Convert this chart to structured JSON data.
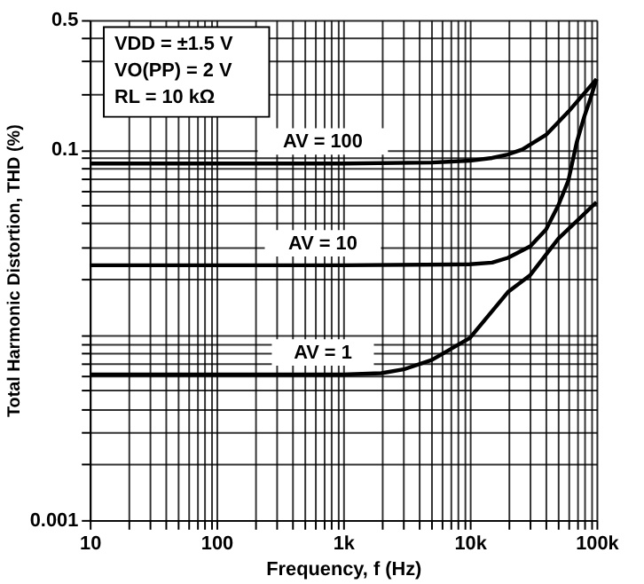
{
  "chart_data": {
    "type": "line",
    "xlabel": "Frequency, f (Hz)",
    "ylabel": "Total Harmonic Distortion, THD (%)",
    "log": "xy",
    "grid": true,
    "line_style": "solid",
    "marker": "none",
    "xlim": [
      10,
      100000
    ],
    "ylim": [
      0.001,
      0.5
    ],
    "xticks": [
      {
        "value": 10,
        "label": "10"
      },
      {
        "value": 20,
        "label": null
      },
      {
        "value": 30,
        "label": null
      },
      {
        "value": 40,
        "label": null
      },
      {
        "value": 50,
        "label": null
      },
      {
        "value": 60,
        "label": null
      },
      {
        "value": 70,
        "label": null
      },
      {
        "value": 80,
        "label": null
      },
      {
        "value": 90,
        "label": null
      },
      {
        "value": 100,
        "label": "100"
      },
      {
        "value": 200,
        "label": null
      },
      {
        "value": 300,
        "label": null
      },
      {
        "value": 400,
        "label": null
      },
      {
        "value": 500,
        "label": null
      },
      {
        "value": 600,
        "label": null
      },
      {
        "value": 700,
        "label": null
      },
      {
        "value": 800,
        "label": null
      },
      {
        "value": 900,
        "label": null
      },
      {
        "value": 1000,
        "label": "1k"
      },
      {
        "value": 2000,
        "label": null
      },
      {
        "value": 3000,
        "label": null
      },
      {
        "value": 4000,
        "label": null
      },
      {
        "value": 5000,
        "label": null
      },
      {
        "value": 6000,
        "label": null
      },
      {
        "value": 7000,
        "label": null
      },
      {
        "value": 8000,
        "label": null
      },
      {
        "value": 9000,
        "label": null
      },
      {
        "value": 10000,
        "label": "10k"
      },
      {
        "value": 20000,
        "label": null
      },
      {
        "value": 30000,
        "label": null
      },
      {
        "value": 40000,
        "label": null
      },
      {
        "value": 50000,
        "label": null
      },
      {
        "value": 60000,
        "label": null
      },
      {
        "value": 70000,
        "label": null
      },
      {
        "value": 80000,
        "label": null
      },
      {
        "value": 90000,
        "label": null
      },
      {
        "value": 100000,
        "label": "100k"
      }
    ],
    "yticks": [
      0.001,
      {
        "value": 0.002,
        "label": null
      },
      {
        "value": 0.003,
        "label": null
      },
      {
        "value": 0.004,
        "label": null
      },
      {
        "value": 0.005,
        "label": null
      },
      {
        "value": 0.006,
        "label": null
      },
      {
        "value": 0.007,
        "label": null
      },
      {
        "value": 0.008,
        "label": null
      },
      {
        "value": 0.009,
        "label": null
      },
      {
        "value": 0.01,
        "label": null
      },
      {
        "value": 0.02,
        "label": null
      },
      {
        "value": 0.03,
        "label": null
      },
      {
        "value": 0.04,
        "label": null
      },
      {
        "value": 0.05,
        "label": null
      },
      {
        "value": 0.06,
        "label": null
      },
      {
        "value": 0.07,
        "label": null
      },
      {
        "value": 0.08,
        "label": null
      },
      {
        "value": 0.09,
        "label": null
      },
      0.1,
      {
        "value": 0.2,
        "label": null
      },
      {
        "value": 0.3,
        "label": null
      },
      {
        "value": 0.4,
        "label": null
      },
      0.5
    ],
    "series": [
      {
        "name": "AV = 100",
        "color": "#000000",
        "x": [
          10,
          100,
          1000,
          5000,
          10000,
          15000,
          20000,
          26000,
          40000,
          60000,
          100000
        ],
        "values": [
          0.084,
          0.084,
          0.084,
          0.085,
          0.087,
          0.09,
          0.094,
          0.1,
          0.12,
          0.16,
          0.24
        ]
      },
      {
        "name": "AV = 10",
        "color": "#000000",
        "x": [
          10,
          1000,
          10000,
          15000,
          20000,
          30000,
          40000,
          50000,
          60000,
          70000,
          80000,
          90000,
          100000
        ],
        "values": [
          0.0237,
          0.0237,
          0.024,
          0.0245,
          0.026,
          0.03,
          0.037,
          0.05,
          0.068,
          0.11,
          0.15,
          0.19,
          0.24
        ]
      },
      {
        "name": "AV = 1",
        "color": "#000000",
        "x": [
          10,
          1000,
          2000,
          3000,
          5000,
          10000,
          20000,
          30000,
          50000,
          100000
        ],
        "values": [
          0.0061,
          0.0061,
          0.0062,
          0.0065,
          0.0073,
          0.0096,
          0.017,
          0.021,
          0.033,
          0.052
        ]
      }
    ],
    "annotations": [
      "VDD = ±1.5 V",
      "VO(PP) = 2 V",
      "RL = 10 kΩ"
    ]
  }
}
